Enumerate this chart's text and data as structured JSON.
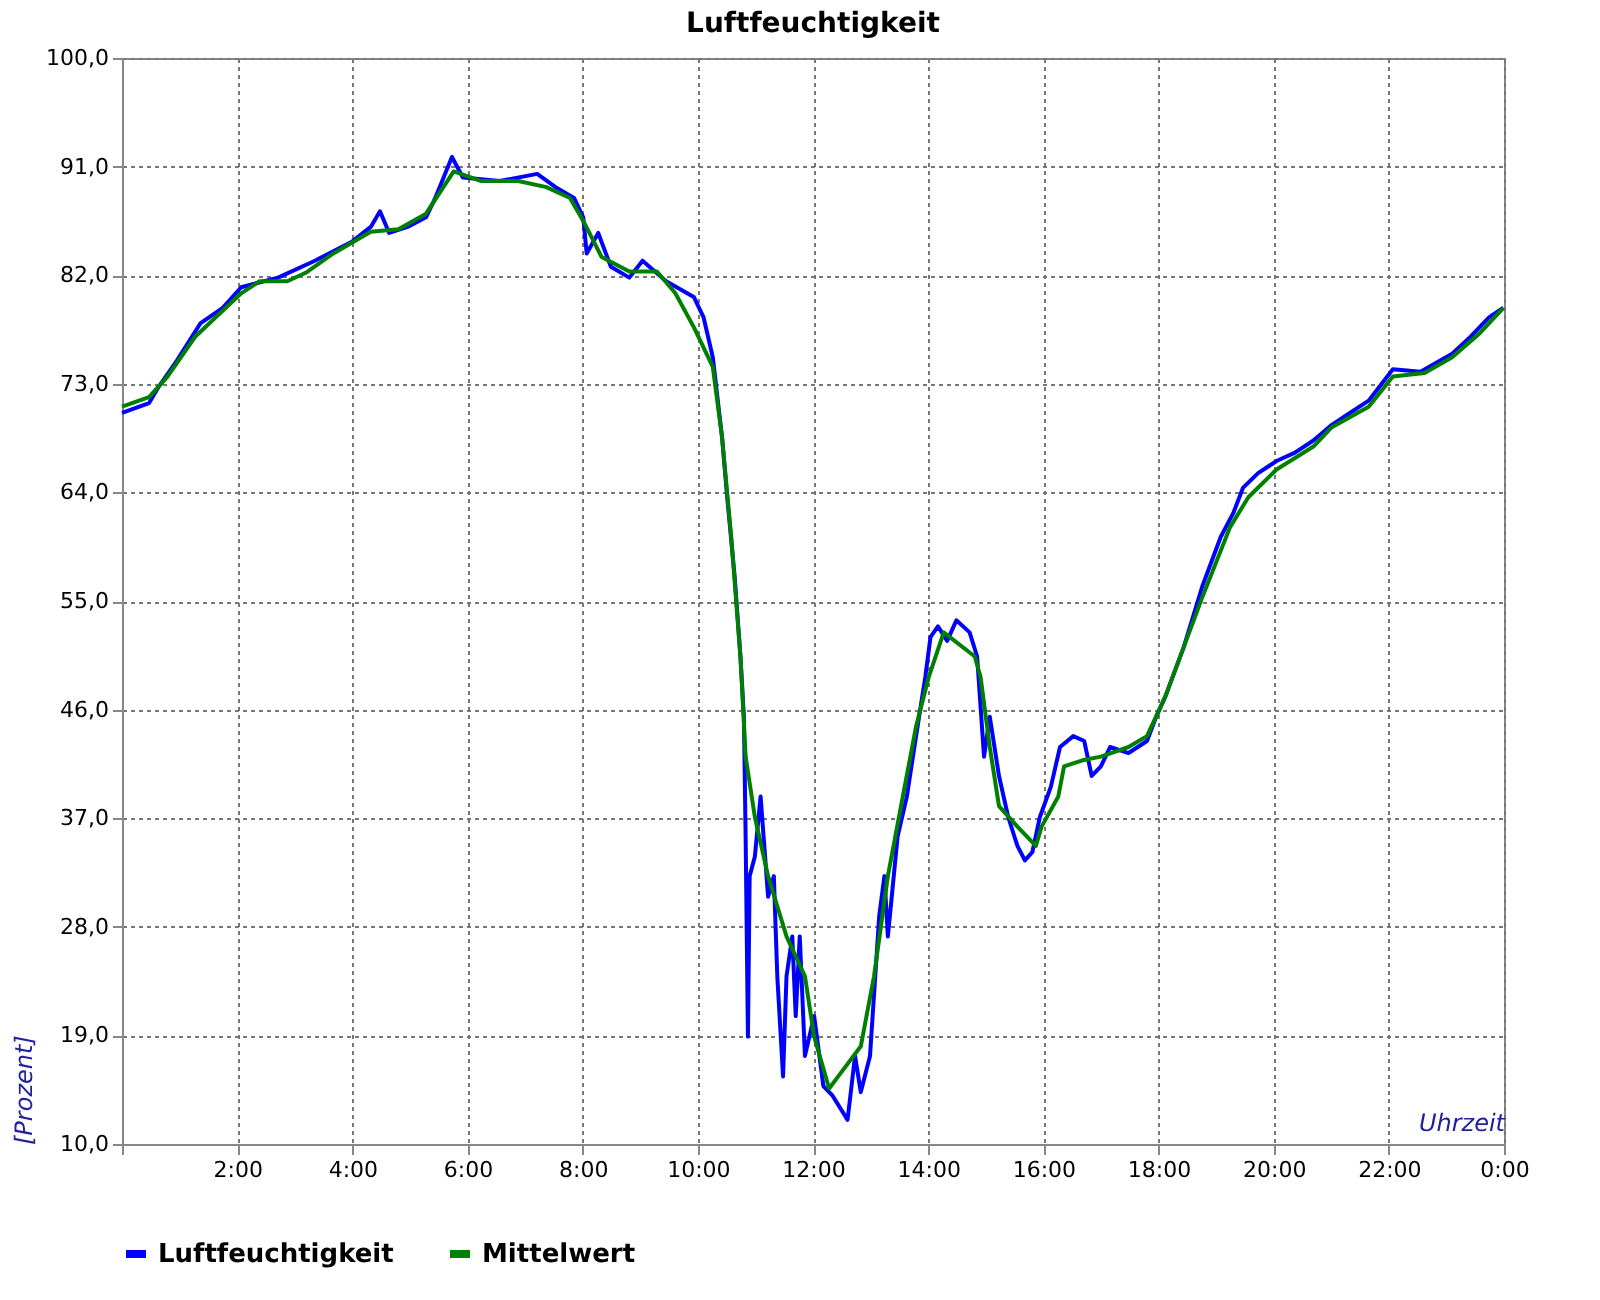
{
  "chart_data": {
    "type": "line",
    "title": "Luftfeuchtigkeit",
    "xlabel": "Uhrzeit",
    "ylabel": "[Prozent]",
    "xlim": [
      0,
      24
    ],
    "xticks": [
      {
        "value": 0,
        "label": null
      },
      {
        "value": 2,
        "label": "2:00"
      },
      {
        "value": 4,
        "label": "4:00"
      },
      {
        "value": 6,
        "label": "6:00"
      },
      {
        "value": 8,
        "label": "8:00"
      },
      {
        "value": 10,
        "label": "10:00"
      },
      {
        "value": 12,
        "label": "12:00"
      },
      {
        "value": 14,
        "label": "14:00"
      },
      {
        "value": 16,
        "label": "16:00"
      },
      {
        "value": 18,
        "label": "18:00"
      },
      {
        "value": 20,
        "label": "20:00"
      },
      {
        "value": 22,
        "label": "22:00"
      },
      {
        "value": 24,
        "label": "0:00"
      }
    ],
    "ylim": [
      10,
      100
    ],
    "yticks": [
      {
        "value": 10,
        "label": "10,0"
      },
      {
        "value": 19,
        "label": "19,0"
      },
      {
        "value": 28,
        "label": "28,0"
      },
      {
        "value": 37,
        "label": "37,0"
      },
      {
        "value": 46,
        "label": "46,0"
      },
      {
        "value": 55,
        "label": "55,0"
      },
      {
        "value": 64,
        "label": "64,0"
      },
      {
        "value": 73,
        "label": "73,0"
      },
      {
        "value": 82,
        "label": "82,0"
      },
      {
        "value": 91,
        "label": "91,0"
      },
      {
        "value": 100,
        "label": "100,0"
      }
    ],
    "grid": true,
    "legend": "bottom left",
    "marker": "none",
    "line_style": "solid",
    "series": [
      {
        "name": "Luftfeuchtigkeit",
        "color": "#0000ff",
        "x": [
          0,
          0.47,
          0.63,
          0.95,
          1.36,
          1.75,
          2.07,
          2.71,
          3.35,
          4.0,
          4.32,
          4.48,
          4.64,
          4.96,
          5.28,
          5.44,
          5.73,
          5.92,
          6.56,
          7.21,
          7.53,
          7.85,
          8.01,
          8.07,
          8.27,
          8.49,
          8.81,
          9.04,
          9.45,
          9.93,
          10.1,
          10.26,
          10.42,
          10.51,
          10.64,
          10.74,
          10.8,
          10.83,
          10.87,
          10.9,
          10.99,
          11.09,
          11.22,
          11.32,
          11.38,
          11.48,
          11.54,
          11.64,
          11.7,
          11.77,
          11.86,
          12.02,
          12.18,
          12.34,
          12.6,
          12.73,
          12.83,
          12.99,
          13.15,
          13.24,
          13.3,
          13.47,
          13.63,
          13.79,
          13.95,
          14.04,
          14.17,
          14.33,
          14.49,
          14.72,
          14.85,
          14.97,
          15.07,
          15.23,
          15.39,
          15.55,
          15.68,
          15.81,
          15.94,
          16.13,
          16.29,
          16.52,
          16.71,
          16.84,
          17.0,
          17.16,
          17.48,
          17.8,
          17.96,
          18.12,
          18.44,
          18.76,
          19.08,
          19.3,
          19.47,
          19.73,
          20.05,
          20.37,
          20.69,
          21.01,
          21.33,
          21.65,
          22.07,
          22.55,
          23.1,
          23.42,
          23.74,
          23.99
        ],
        "values": [
          70.6,
          71.4,
          72.7,
          74.9,
          78.0,
          79.3,
          81.0,
          81.8,
          83.2,
          84.8,
          86.0,
          87.3,
          85.5,
          86.0,
          86.8,
          88.4,
          91.8,
          90.1,
          89.8,
          90.4,
          89.3,
          88.4,
          86.8,
          83.8,
          85.5,
          82.7,
          81.8,
          83.2,
          81.5,
          80.2,
          78.5,
          75.2,
          68.6,
          63.6,
          57.0,
          50.4,
          45.4,
          35.5,
          18.9,
          32.2,
          33.8,
          38.8,
          30.5,
          32.2,
          23.9,
          15.6,
          23.9,
          27.2,
          20.6,
          27.2,
          17.3,
          20.6,
          14.8,
          14.0,
          12.0,
          17.3,
          14.3,
          17.3,
          28.9,
          32.2,
          27.2,
          35.5,
          38.8,
          43.8,
          48.7,
          52.0,
          52.9,
          51.7,
          53.4,
          52.4,
          50.4,
          42.1,
          45.4,
          40.5,
          37.1,
          34.7,
          33.5,
          34.2,
          37.1,
          39.6,
          42.9,
          43.8,
          43.4,
          40.5,
          41.3,
          42.9,
          42.4,
          43.4,
          45.4,
          47.1,
          51.2,
          56.2,
          60.3,
          62.3,
          64.4,
          65.6,
          66.6,
          67.3,
          68.3,
          69.6,
          70.6,
          71.6,
          74.2,
          74.0,
          75.5,
          76.9,
          78.5,
          79.3
        ]
      },
      {
        "name": "Mittelwert",
        "color": "#008000",
        "x": [
          0,
          0.47,
          0.79,
          1.27,
          2.07,
          2.39,
          2.87,
          3.19,
          3.67,
          4.32,
          4.8,
          5.28,
          5.76,
          6.24,
          6.88,
          7.37,
          7.78,
          8.01,
          8.33,
          8.81,
          9.29,
          9.61,
          9.93,
          10.26,
          10.42,
          10.58,
          10.74,
          10.83,
          10.99,
          11.22,
          11.54,
          11.86,
          12.02,
          12.28,
          12.5,
          12.83,
          13.06,
          13.3,
          13.56,
          13.79,
          14.01,
          14.27,
          14.81,
          14.91,
          15.07,
          15.23,
          15.55,
          15.87,
          15.97,
          16.26,
          16.36,
          16.68,
          17.0,
          17.48,
          17.8,
          18.12,
          18.44,
          18.76,
          19.24,
          19.56,
          20.05,
          20.69,
          21.01,
          21.65,
          22.07,
          22.62,
          23.1,
          23.58,
          23.99
        ],
        "values": [
          71.1,
          71.9,
          73.6,
          76.9,
          80.5,
          81.5,
          81.5,
          82.2,
          83.8,
          85.6,
          85.8,
          87.1,
          90.6,
          89.8,
          89.8,
          89.3,
          88.4,
          86.5,
          83.5,
          82.3,
          82.3,
          80.5,
          77.7,
          74.4,
          68.6,
          60.3,
          50.4,
          42.1,
          37.1,
          32.2,
          27.2,
          23.9,
          18.9,
          14.6,
          16.0,
          18.1,
          23.9,
          32.2,
          38.8,
          44.6,
          48.7,
          52.4,
          50.4,
          48.7,
          42.9,
          38.0,
          36.3,
          34.7,
          36.3,
          38.8,
          41.3,
          41.8,
          42.1,
          42.9,
          43.8,
          47.1,
          51.2,
          55.3,
          61.1,
          63.6,
          65.9,
          67.8,
          69.4,
          71.1,
          73.6,
          73.9,
          75.2,
          77.2,
          79.3
        ]
      }
    ]
  }
}
